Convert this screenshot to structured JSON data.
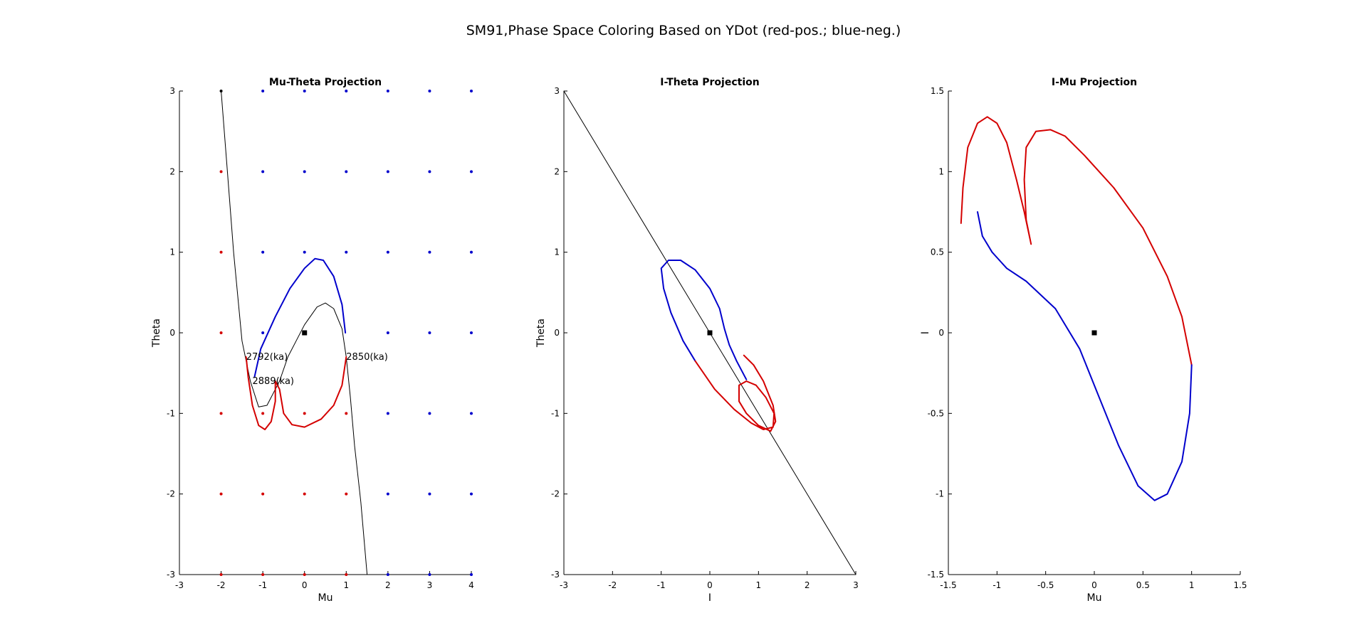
{
  "figure": {
    "title": "SM91,Phase Space Coloring Based on YDot (red-pos.; blue-neg.)"
  },
  "colors": {
    "positive": "#d40000",
    "negative": "#0000cc",
    "line": "#000000"
  },
  "chart_data": [
    {
      "type": "line",
      "title": "Mu-Theta Projection",
      "xlabel": "Mu",
      "ylabel": "Theta",
      "xlim": [
        -3,
        4
      ],
      "ylim": [
        -3,
        3
      ],
      "xticks": [
        -3,
        -2,
        -1,
        0,
        1,
        2,
        3,
        4
      ],
      "yticks": [
        -3,
        -2,
        -1,
        0,
        1,
        2,
        3
      ],
      "grid": false,
      "series": [
        {
          "color": "#000000",
          "width": 1,
          "points": [
            [
              -2.0,
              3.0
            ],
            [
              -1.85,
              2.0
            ],
            [
              -1.7,
              1.0
            ],
            [
              -1.5,
              -0.1
            ],
            [
              -1.3,
              -0.6
            ],
            [
              -1.1,
              -0.92
            ],
            [
              -0.9,
              -0.9
            ],
            [
              -0.6,
              -0.6
            ],
            [
              -0.4,
              -0.3
            ],
            [
              -0.2,
              -0.1
            ],
            [
              0.0,
              0.1
            ],
            [
              0.3,
              0.32
            ],
            [
              0.5,
              0.37
            ],
            [
              0.7,
              0.3
            ],
            [
              0.9,
              0.05
            ],
            [
              1.0,
              -0.3
            ],
            [
              1.1,
              -0.8
            ],
            [
              1.2,
              -1.4
            ],
            [
              1.35,
              -2.1
            ],
            [
              1.5,
              -3.0
            ]
          ]
        },
        {
          "color": "#0000cc",
          "width": 2,
          "points": [
            [
              -1.2,
              -0.55
            ],
            [
              -1.05,
              -0.2
            ],
            [
              -0.7,
              0.2
            ],
            [
              -0.35,
              0.55
            ],
            [
              0.0,
              0.8
            ],
            [
              0.25,
              0.92
            ],
            [
              0.45,
              0.9
            ],
            [
              0.7,
              0.7
            ],
            [
              0.9,
              0.35
            ],
            [
              0.98,
              0.0
            ]
          ]
        },
        {
          "color": "#d40000",
          "width": 2,
          "points": [
            [
              1.0,
              -0.3
            ],
            [
              0.9,
              -0.65
            ],
            [
              0.7,
              -0.9
            ],
            [
              0.4,
              -1.07
            ],
            [
              0.0,
              -1.17
            ],
            [
              -0.3,
              -1.14
            ],
            [
              -0.5,
              -1.0
            ],
            [
              -0.6,
              -0.7
            ],
            [
              -0.7,
              -0.6
            ],
            [
              -0.7,
              -0.85
            ],
            [
              -0.8,
              -1.1
            ],
            [
              -0.95,
              -1.2
            ],
            [
              -1.1,
              -1.15
            ],
            [
              -1.25,
              -0.9
            ],
            [
              -1.35,
              -0.55
            ],
            [
              -1.4,
              -0.3
            ]
          ]
        }
      ],
      "markers": [
        {
          "x": 0,
          "y": 0,
          "color": "#000000"
        }
      ],
      "dot_grid": {
        "x": [
          -2,
          -1,
          0,
          1,
          2,
          3,
          4
        ],
        "y": [
          3,
          2,
          1,
          0,
          -1,
          -2,
          -3
        ],
        "rows": [
          [
            "#000000",
            "#0000cc",
            "#0000cc",
            "#0000cc",
            "#0000cc",
            "#0000cc",
            "#0000cc"
          ],
          [
            "#d40000",
            "#0000cc",
            "#0000cc",
            "#0000cc",
            "#0000cc",
            "#0000cc",
            "#0000cc"
          ],
          [
            "#d40000",
            "#0000cc",
            "#0000cc",
            "#0000cc",
            "#0000cc",
            "#0000cc",
            "#0000cc"
          ],
          [
            "#d40000",
            "#0000cc",
            "",
            "",
            "#0000cc",
            "#0000cc",
            "#0000cc"
          ],
          [
            "#d40000",
            "#d40000",
            "#d40000",
            "#d40000",
            "#0000cc",
            "#0000cc",
            "#0000cc"
          ],
          [
            "#d40000",
            "#d40000",
            "#d40000",
            "#d40000",
            "#0000cc",
            "#0000cc",
            "#0000cc"
          ],
          [
            "#d40000",
            "#d40000",
            "#d40000",
            "#d40000",
            "#0000cc",
            "#0000cc",
            "#0000cc"
          ]
        ]
      },
      "annotations": [
        {
          "text": "2792(ka)",
          "x": -1.4,
          "y": -0.3
        },
        {
          "text": "2850(ka)",
          "x": 1.0,
          "y": -0.3
        },
        {
          "text": "2889(ka)",
          "x": -1.25,
          "y": -0.6
        }
      ]
    },
    {
      "type": "line",
      "title": "I-Theta Projection",
      "xlabel": "I",
      "ylabel": "Theta",
      "xlim": [
        -3,
        3
      ],
      "ylim": [
        -3,
        3
      ],
      "xticks": [
        -3,
        -2,
        -1,
        0,
        1,
        2,
        3
      ],
      "yticks": [
        -3,
        -2,
        -1,
        0,
        1,
        2,
        3
      ],
      "grid": false,
      "series": [
        {
          "color": "#000000",
          "width": 1,
          "points": [
            [
              -3,
              3
            ],
            [
              3,
              -3
            ]
          ]
        },
        {
          "color": "#0000cc",
          "width": 2,
          "points": [
            [
              0.75,
              -0.58
            ],
            [
              0.55,
              -0.35
            ],
            [
              0.4,
              -0.15
            ],
            [
              0.3,
              0.05
            ],
            [
              0.2,
              0.3
            ],
            [
              0.0,
              0.55
            ],
            [
              -0.3,
              0.78
            ],
            [
              -0.6,
              0.9
            ],
            [
              -0.85,
              0.9
            ],
            [
              -1.0,
              0.8
            ],
            [
              -0.95,
              0.55
            ],
            [
              -0.8,
              0.25
            ],
            [
              -0.55,
              -0.1
            ],
            [
              -0.3,
              -0.35
            ]
          ]
        },
        {
          "color": "#d40000",
          "width": 2,
          "points": [
            [
              -0.3,
              -0.35
            ],
            [
              0.1,
              -0.7
            ],
            [
              0.5,
              -0.95
            ],
            [
              0.85,
              -1.12
            ],
            [
              1.1,
              -1.2
            ],
            [
              1.3,
              -1.17
            ],
            [
              1.32,
              -1.0
            ],
            [
              1.15,
              -0.8
            ],
            [
              0.95,
              -0.65
            ],
            [
              0.75,
              -0.6
            ],
            [
              0.6,
              -0.65
            ],
            [
              0.6,
              -0.85
            ],
            [
              0.75,
              -1.0
            ],
            [
              1.0,
              -1.15
            ],
            [
              1.25,
              -1.22
            ],
            [
              1.35,
              -1.1
            ],
            [
              1.3,
              -0.9
            ],
            [
              1.1,
              -0.6
            ],
            [
              0.9,
              -0.4
            ],
            [
              0.7,
              -0.28
            ]
          ]
        }
      ],
      "markers": [
        {
          "x": 0,
          "y": 0,
          "color": "#000000"
        }
      ]
    },
    {
      "type": "line",
      "title": "I-Mu Projection",
      "xlabel": "Mu",
      "ylabel": "I",
      "xlim": [
        -1.5,
        1.5
      ],
      "ylim": [
        -1.5,
        1.5
      ],
      "xticks": [
        -1.5,
        -1,
        -0.5,
        0,
        0.5,
        1,
        1.5
      ],
      "yticks": [
        -1.5,
        -1,
        -0.5,
        0,
        0.5,
        1,
        1.5
      ],
      "grid": false,
      "series": [
        {
          "color": "#d40000",
          "width": 2,
          "points": [
            [
              -1.37,
              0.68
            ],
            [
              -1.35,
              0.9
            ],
            [
              -1.3,
              1.15
            ],
            [
              -1.2,
              1.3
            ],
            [
              -1.1,
              1.34
            ],
            [
              -1.0,
              1.3
            ],
            [
              -0.9,
              1.18
            ],
            [
              -0.8,
              0.95
            ],
            [
              -0.72,
              0.75
            ],
            [
              -0.65,
              0.55
            ],
            [
              -0.7,
              0.7
            ],
            [
              -0.72,
              0.95
            ],
            [
              -0.7,
              1.15
            ],
            [
              -0.6,
              1.25
            ],
            [
              -0.45,
              1.26
            ],
            [
              -0.3,
              1.22
            ],
            [
              -0.1,
              1.1
            ],
            [
              0.2,
              0.9
            ],
            [
              0.5,
              0.65
            ],
            [
              0.75,
              0.35
            ],
            [
              0.9,
              0.1
            ],
            [
              1.0,
              -0.2
            ]
          ]
        },
        {
          "color": "#0000cc",
          "width": 2,
          "points": [
            [
              1.0,
              -0.2
            ],
            [
              0.98,
              -0.5
            ],
            [
              0.9,
              -0.8
            ],
            [
              0.75,
              -1.0
            ],
            [
              0.62,
              -1.04
            ],
            [
              0.45,
              -0.95
            ],
            [
              0.25,
              -0.7
            ],
            [
              0.05,
              -0.4
            ],
            [
              -0.15,
              -0.1
            ],
            [
              -0.4,
              0.15
            ],
            [
              -0.7,
              0.32
            ],
            [
              -0.9,
              0.4
            ],
            [
              -1.05,
              0.5
            ],
            [
              -1.15,
              0.6
            ],
            [
              -1.2,
              0.75
            ]
          ]
        }
      ],
      "markers": [
        {
          "x": 0,
          "y": 0,
          "color": "#000000"
        }
      ]
    }
  ]
}
